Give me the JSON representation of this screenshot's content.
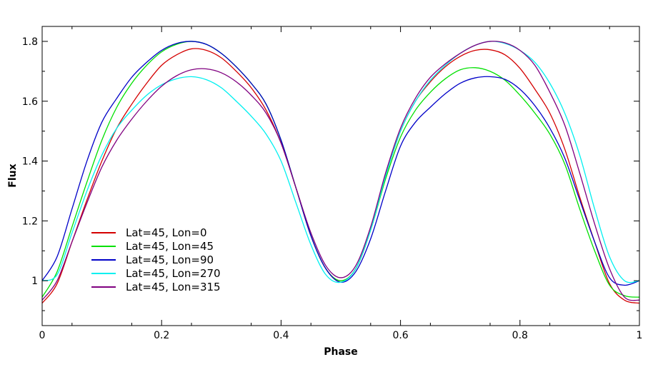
{
  "chart_data": {
    "type": "line",
    "xlabel": "Phase",
    "ylabel": "Flux",
    "xlim": [
      0,
      1
    ],
    "ylim": [
      0.85,
      1.85
    ],
    "xticks": [
      0,
      0.2,
      0.4,
      0.6,
      0.8,
      1
    ],
    "xtick_labels": [
      "0",
      "0.2",
      "0.4",
      "0.6",
      "0.8",
      "1"
    ],
    "yticks": [
      1,
      1.2,
      1.4,
      1.6,
      1.8
    ],
    "ytick_labels": [
      "1",
      "1.2",
      "1.4",
      "1.6",
      "1.8"
    ],
    "grid": false,
    "legend_position": "lower-left",
    "series": [
      {
        "name": "Lat=45, Lon=0",
        "color": "#d40000",
        "x": [
          0,
          0.025,
          0.05,
          0.075,
          0.1,
          0.125,
          0.15,
          0.175,
          0.2,
          0.225,
          0.25,
          0.275,
          0.3,
          0.325,
          0.35,
          0.375,
          0.4,
          0.425,
          0.45,
          0.475,
          0.5,
          0.525,
          0.55,
          0.575,
          0.6,
          0.625,
          0.65,
          0.675,
          0.7,
          0.725,
          0.75,
          0.775,
          0.8,
          0.825,
          0.85,
          0.875,
          0.9,
          0.925,
          0.95,
          0.975,
          1
        ],
        "y": [
          0.925,
          0.99,
          1.13,
          1.27,
          1.4,
          1.51,
          1.59,
          1.66,
          1.72,
          1.755,
          1.775,
          1.77,
          1.745,
          1.7,
          1.645,
          1.57,
          1.46,
          1.31,
          1.15,
          1.04,
          1.0,
          1.04,
          1.17,
          1.35,
          1.5,
          1.6,
          1.665,
          1.715,
          1.75,
          1.77,
          1.772,
          1.755,
          1.71,
          1.64,
          1.56,
          1.44,
          1.28,
          1.13,
          0.99,
          0.935,
          0.925
        ]
      },
      {
        "name": "Lat=45, Lon=45",
        "color": "#00e000",
        "x": [
          0,
          0.025,
          0.05,
          0.075,
          0.1,
          0.125,
          0.15,
          0.175,
          0.2,
          0.225,
          0.25,
          0.275,
          0.3,
          0.325,
          0.35,
          0.375,
          0.4,
          0.425,
          0.45,
          0.475,
          0.5,
          0.525,
          0.55,
          0.575,
          0.6,
          0.625,
          0.65,
          0.675,
          0.7,
          0.725,
          0.75,
          0.775,
          0.8,
          0.825,
          0.85,
          0.875,
          0.9,
          0.925,
          0.95,
          0.975,
          1
        ],
        "y": [
          0.945,
          1.03,
          1.18,
          1.33,
          1.47,
          1.58,
          1.66,
          1.72,
          1.765,
          1.79,
          1.8,
          1.79,
          1.76,
          1.715,
          1.66,
          1.59,
          1.47,
          1.31,
          1.15,
          1.04,
          1.0,
          1.04,
          1.17,
          1.34,
          1.48,
          1.57,
          1.63,
          1.675,
          1.705,
          1.712,
          1.7,
          1.67,
          1.62,
          1.56,
          1.49,
          1.39,
          1.24,
          1.1,
          0.985,
          0.95,
          0.945
        ]
      },
      {
        "name": "Lat=45, Lon=90",
        "color": "#0000c8",
        "x": [
          0,
          0.025,
          0.05,
          0.075,
          0.1,
          0.125,
          0.15,
          0.175,
          0.2,
          0.225,
          0.25,
          0.275,
          0.3,
          0.325,
          0.35,
          0.375,
          0.4,
          0.425,
          0.45,
          0.475,
          0.5,
          0.525,
          0.55,
          0.575,
          0.6,
          0.625,
          0.65,
          0.675,
          0.7,
          0.725,
          0.75,
          0.775,
          0.8,
          0.825,
          0.85,
          0.875,
          0.9,
          0.925,
          0.95,
          0.975,
          1
        ],
        "y": [
          1.0,
          1.08,
          1.24,
          1.4,
          1.53,
          1.61,
          1.68,
          1.73,
          1.77,
          1.793,
          1.8,
          1.79,
          1.76,
          1.715,
          1.66,
          1.59,
          1.47,
          1.31,
          1.15,
          1.04,
          0.995,
          1.03,
          1.14,
          1.3,
          1.45,
          1.53,
          1.58,
          1.625,
          1.66,
          1.678,
          1.682,
          1.673,
          1.64,
          1.585,
          1.51,
          1.41,
          1.27,
          1.13,
          1.01,
          0.985,
          1.0
        ]
      },
      {
        "name": "Lat=45, Lon=270",
        "color": "#00f0f0",
        "x": [
          0,
          0.025,
          0.05,
          0.075,
          0.1,
          0.125,
          0.15,
          0.175,
          0.2,
          0.225,
          0.25,
          0.275,
          0.3,
          0.325,
          0.35,
          0.375,
          0.4,
          0.425,
          0.45,
          0.475,
          0.5,
          0.525,
          0.55,
          0.575,
          0.6,
          0.625,
          0.65,
          0.675,
          0.7,
          0.725,
          0.75,
          0.775,
          0.8,
          0.825,
          0.85,
          0.875,
          0.9,
          0.925,
          0.95,
          0.975,
          1
        ],
        "y": [
          1.0,
          1.02,
          1.16,
          1.3,
          1.42,
          1.51,
          1.57,
          1.62,
          1.655,
          1.675,
          1.682,
          1.672,
          1.645,
          1.6,
          1.55,
          1.49,
          1.4,
          1.26,
          1.12,
          1.02,
          0.995,
          1.04,
          1.17,
          1.35,
          1.5,
          1.6,
          1.67,
          1.72,
          1.76,
          1.787,
          1.8,
          1.793,
          1.77,
          1.73,
          1.66,
          1.56,
          1.42,
          1.24,
          1.08,
          1.0,
          1.0
        ]
      },
      {
        "name": "Lat=45, Lon=315",
        "color": "#800080",
        "x": [
          0,
          0.025,
          0.05,
          0.075,
          0.1,
          0.125,
          0.15,
          0.175,
          0.2,
          0.225,
          0.25,
          0.275,
          0.3,
          0.325,
          0.35,
          0.375,
          0.4,
          0.425,
          0.45,
          0.475,
          0.5,
          0.525,
          0.55,
          0.575,
          0.6,
          0.625,
          0.65,
          0.675,
          0.7,
          0.725,
          0.75,
          0.775,
          0.8,
          0.825,
          0.85,
          0.875,
          0.9,
          0.925,
          0.95,
          0.975,
          1
        ],
        "y": [
          0.935,
          1.0,
          1.13,
          1.26,
          1.38,
          1.47,
          1.54,
          1.6,
          1.65,
          1.685,
          1.705,
          1.708,
          1.695,
          1.665,
          1.62,
          1.56,
          1.46,
          1.31,
          1.16,
          1.05,
          1.01,
          1.05,
          1.18,
          1.36,
          1.51,
          1.61,
          1.68,
          1.725,
          1.76,
          1.787,
          1.8,
          1.795,
          1.77,
          1.72,
          1.63,
          1.52,
          1.36,
          1.19,
          1.04,
          0.945,
          0.935
        ]
      }
    ]
  }
}
